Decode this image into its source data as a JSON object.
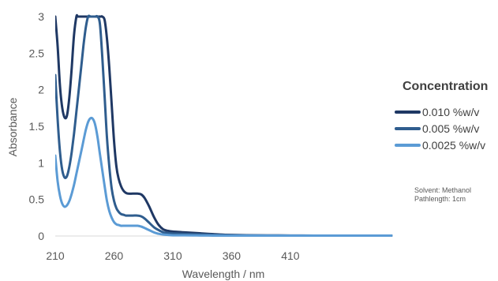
{
  "chart_data": {
    "type": "line",
    "title": "",
    "xlabel": "Wavelength / nm",
    "ylabel": "Absorbance",
    "xlim": [
      210,
      496
    ],
    "ylim": [
      0,
      3
    ],
    "xticks": [
      210,
      260,
      310,
      360,
      410
    ],
    "yticks": [
      0,
      0.5,
      1,
      1.5,
      2,
      2.5,
      3
    ],
    "grid": false,
    "legend_position": "right",
    "legend_title": "Concentration",
    "series": [
      {
        "name": "0.010 %w/v",
        "color": "#1f3864",
        "x": [
          210,
          212,
          214,
          216,
          218,
          220,
          222,
          224,
          226,
          228,
          229,
          230,
          234,
          238,
          242,
          246,
          248,
          249,
          250,
          252,
          254,
          256,
          258,
          260,
          262,
          264,
          266,
          268,
          270,
          272,
          276,
          280,
          283,
          286,
          290,
          294,
          298,
          302,
          306,
          310,
          320,
          330,
          340,
          350,
          360,
          380,
          400,
          420,
          440,
          460,
          480,
          496
        ],
        "y": [
          3.0,
          2.6,
          2.05,
          1.75,
          1.62,
          1.65,
          1.9,
          2.3,
          2.75,
          3.0,
          3.0,
          3.0,
          3.0,
          3.0,
          3.0,
          3.0,
          3.0,
          3.0,
          3.0,
          2.95,
          2.7,
          2.3,
          1.8,
          1.3,
          0.95,
          0.78,
          0.68,
          0.62,
          0.59,
          0.58,
          0.58,
          0.58,
          0.57,
          0.52,
          0.4,
          0.26,
          0.15,
          0.09,
          0.07,
          0.06,
          0.05,
          0.04,
          0.03,
          0.02,
          0.015,
          0.01,
          0.008,
          0.006,
          0.005,
          0.005,
          0.005,
          0.005
        ]
      },
      {
        "name": "0.005 %w/v",
        "color": "#2f5d8e",
        "x": [
          210,
          212,
          214,
          216,
          218,
          220,
          222,
          224,
          226,
          228,
          230,
          232,
          234,
          236,
          238,
          240,
          242,
          244,
          246,
          248,
          250,
          252,
          254,
          256,
          258,
          260,
          262,
          264,
          266,
          268,
          270,
          272,
          276,
          280,
          283,
          286,
          290,
          294,
          298,
          302,
          306,
          310,
          320,
          330,
          340,
          350,
          360,
          380,
          400,
          420,
          440,
          460,
          480,
          496
        ],
        "y": [
          2.2,
          1.6,
          1.15,
          0.9,
          0.8,
          0.82,
          0.95,
          1.15,
          1.4,
          1.7,
          2.0,
          2.3,
          2.6,
          2.85,
          3.0,
          3.0,
          3.0,
          3.0,
          3.0,
          2.9,
          2.45,
          1.9,
          1.35,
          0.95,
          0.65,
          0.48,
          0.38,
          0.33,
          0.3,
          0.29,
          0.28,
          0.28,
          0.28,
          0.28,
          0.27,
          0.24,
          0.18,
          0.12,
          0.08,
          0.05,
          0.04,
          0.035,
          0.03,
          0.025,
          0.02,
          0.015,
          0.01,
          0.008,
          0.006,
          0.005,
          0.005,
          0.005,
          0.005,
          0.005
        ]
      },
      {
        "name": "0.0025 %w/v",
        "color": "#5b9bd5",
        "x": [
          210,
          212,
          214,
          216,
          218,
          220,
          222,
          224,
          226,
          228,
          230,
          232,
          234,
          236,
          238,
          240,
          242,
          244,
          246,
          248,
          250,
          252,
          254,
          256,
          258,
          260,
          262,
          264,
          266,
          268,
          270,
          272,
          276,
          280,
          283,
          286,
          290,
          294,
          298,
          302,
          306,
          310,
          320,
          330,
          340,
          350,
          360,
          380,
          400,
          420,
          440,
          460,
          480,
          496
        ],
        "y": [
          1.1,
          0.75,
          0.55,
          0.44,
          0.4,
          0.42,
          0.48,
          0.58,
          0.7,
          0.85,
          1.0,
          1.15,
          1.3,
          1.45,
          1.56,
          1.61,
          1.6,
          1.52,
          1.35,
          1.12,
          0.9,
          0.68,
          0.48,
          0.34,
          0.25,
          0.19,
          0.16,
          0.15,
          0.14,
          0.14,
          0.14,
          0.14,
          0.14,
          0.14,
          0.13,
          0.11,
          0.08,
          0.05,
          0.03,
          0.02,
          0.015,
          0.01,
          0.01,
          0.008,
          0.006,
          0.005,
          0.005,
          0.005,
          0.005,
          0.005,
          0.005,
          0.005,
          0.005,
          0.005
        ]
      }
    ],
    "annotations": [
      "Solvent: Methanol",
      "Pathlength: 1cm"
    ]
  }
}
